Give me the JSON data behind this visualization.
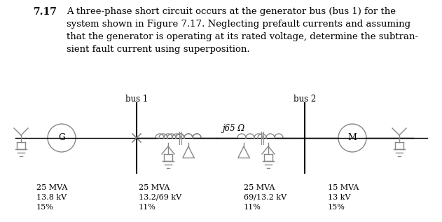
{
  "title_number": "7.17",
  "paragraph": "A three-phase short circuit occurs at the generator bus (bus 1) for the\nsystem shown in Figure 7.17. Neglecting prefault currents and assuming\nthat the generator is operating at its rated voltage, determine the subtran-\nsient fault current using superposition.",
  "bus1_label": "bus 1",
  "bus2_label": "bus 2",
  "impedance_label": "j65 Ω",
  "comp1": {
    "mva": "25 MVA",
    "kv": "13.8 kV",
    "pct": "15%"
  },
  "comp2": {
    "mva": "25 MVA",
    "kv": "13.2/69 kV",
    "pct": "11%"
  },
  "comp3": {
    "mva": "25 MVA",
    "kv": "69/13.2 kV",
    "pct": "11%"
  },
  "comp4": {
    "mva": "15 MVA",
    "kv": "13 kV",
    "pct": "15%"
  },
  "bg_color": "#ffffff",
  "text_color": "#000000",
  "line_color": "#000000",
  "gray_color": "#888888"
}
